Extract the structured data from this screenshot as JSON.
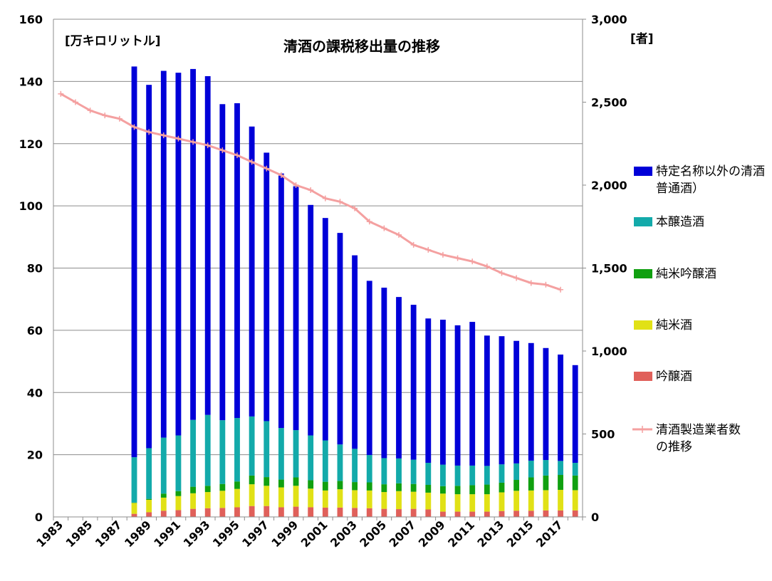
{
  "chart_data": {
    "type": "bar",
    "title": "清酒の課税移出量の推移",
    "left_unit": "[万キロリットル]",
    "right_unit": "[者]",
    "ylim": [
      0,
      160
    ],
    "y_ticks": [
      "0",
      "20",
      "40",
      "60",
      "80",
      "100",
      "120",
      "140",
      "160"
    ],
    "y2lim": [
      0,
      3000
    ],
    "y2_ticks": [
      "0",
      "500",
      "1,000",
      "1,500",
      "2,000",
      "2,500",
      "3,000"
    ],
    "x_tick_labels": [
      "1983",
      "1985",
      "1987",
      "1989",
      "1991",
      "1993",
      "1995",
      "1997",
      "1999",
      "2001",
      "2003",
      "2005",
      "2007",
      "2009",
      "2011",
      "2013",
      "2015",
      "2017"
    ],
    "years": [
      1983,
      1984,
      1985,
      1986,
      1987,
      1988,
      1989,
      1990,
      1991,
      1992,
      1993,
      1994,
      1995,
      1996,
      1997,
      1998,
      1999,
      2000,
      2001,
      2002,
      2003,
      2004,
      2005,
      2006,
      2007,
      2008,
      2009,
      2010,
      2011,
      2012,
      2013,
      2014,
      2015,
      2016,
      2017,
      2018
    ],
    "grid": true,
    "stacked": true,
    "legend_position": "right",
    "series": [
      {
        "name": "吟醸酒",
        "color": "#e0605a",
        "values": [
          null,
          null,
          null,
          null,
          null,
          1.0,
          1.5,
          2.0,
          2.2,
          2.6,
          2.8,
          2.9,
          3.1,
          3.5,
          3.5,
          3.1,
          3.3,
          3.1,
          3.0,
          3.0,
          2.9,
          2.8,
          2.6,
          2.5,
          2.6,
          2.4,
          1.7,
          1.7,
          1.7,
          1.7,
          1.9,
          2.0,
          2.0,
          2.1,
          2.1,
          2.1
        ]
      },
      {
        "name": "純米酒",
        "color": "#e1e116",
        "values": [
          null,
          null,
          null,
          null,
          null,
          3.5,
          4.0,
          4.2,
          4.5,
          5.0,
          5.2,
          5.5,
          5.9,
          7.0,
          6.5,
          6.4,
          6.7,
          6.0,
          5.5,
          5.9,
          5.7,
          5.7,
          5.4,
          5.8,
          5.5,
          5.4,
          5.8,
          5.6,
          5.6,
          5.6,
          6.0,
          6.4,
          6.5,
          6.5,
          6.6,
          6.5
        ]
      },
      {
        "name": "純米吟醸酒",
        "color": "#10a010",
        "values": [
          null,
          null,
          null,
          null,
          null,
          0.1,
          0.3,
          1.3,
          1.6,
          2.1,
          2.0,
          2.2,
          2.4,
          2.8,
          2.8,
          2.5,
          2.7,
          2.7,
          2.8,
          2.7,
          2.6,
          2.6,
          2.5,
          2.5,
          2.5,
          2.5,
          2.4,
          2.7,
          2.9,
          3.1,
          3.1,
          3.5,
          4.2,
          4.7,
          4.8,
          4.7
        ]
      },
      {
        "name": "本醸造酒",
        "color": "#13aaaa",
        "values": [
          null,
          null,
          null,
          null,
          null,
          14.6,
          16.3,
          18.0,
          17.9,
          21.5,
          22.8,
          20.5,
          20.4,
          19.0,
          18.0,
          16.6,
          15.2,
          14.4,
          13.3,
          11.7,
          10.7,
          8.8,
          8.4,
          8.0,
          7.8,
          7.1,
          6.9,
          6.5,
          6.3,
          6.0,
          5.9,
          5.3,
          5.4,
          5.0,
          4.5,
          4.1
        ]
      },
      {
        "name": "特定名称以外の清酒（普通酒）",
        "color": "#0000d8",
        "values": [
          null,
          null,
          null,
          null,
          null,
          125.6,
          116.8,
          117.9,
          116.6,
          112.8,
          108.9,
          101.6,
          101.2,
          93.2,
          86.3,
          81.8,
          78.4,
          74.1,
          71.5,
          68.0,
          62.2,
          56.0,
          54.8,
          51.9,
          49.8,
          46.4,
          46.6,
          45.1,
          46.2,
          41.9,
          41.2,
          39.4,
          37.8,
          36.0,
          34.2,
          31.4
        ]
      },
      {
        "name": "清酒製造業者数の推移",
        "color": "#f4a0a0",
        "axis": "right",
        "type": "line",
        "values": [
          2550,
          2500,
          2450,
          2420,
          2400,
          2350,
          2320,
          2300,
          2280,
          2260,
          2240,
          2210,
          2180,
          2140,
          2100,
          2060,
          2000,
          1970,
          1920,
          1900,
          1860,
          1780,
          1740,
          1700,
          1640,
          1610,
          1580,
          1560,
          1540,
          1510,
          1470,
          1440,
          1410,
          1400,
          1370,
          null
        ]
      }
    ]
  }
}
